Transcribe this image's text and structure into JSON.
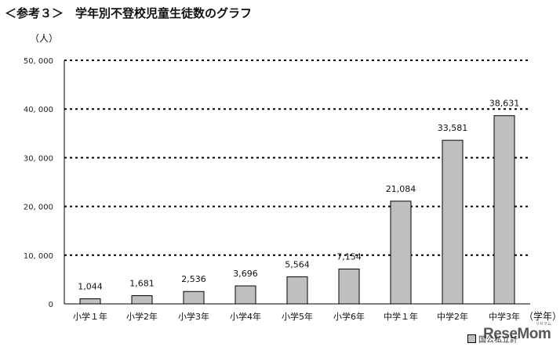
{
  "header": {
    "title": "＜参考３＞　学年別不登校児童生徒数のグラフ"
  },
  "chart_data": {
    "type": "bar",
    "ylabel": "（人）",
    "xlabel": "（学年）",
    "categories": [
      "小学１年",
      "小学2年",
      "小学3年",
      "小学4年",
      "小学5年",
      "小学6年",
      "中学１年",
      "中学2年",
      "中学3年"
    ],
    "values": [
      1044,
      1681,
      2536,
      3696,
      5564,
      7154,
      21084,
      33581,
      38631
    ],
    "value_labels": [
      "1,044",
      "1,681",
      "2,536",
      "3,696",
      "5,564",
      "7,154",
      "21,084",
      "33,581",
      "38,631"
    ],
    "ylim": [
      0,
      50000
    ],
    "yticks": [
      0,
      10000,
      20000,
      30000,
      40000,
      50000
    ],
    "ytick_labels": [
      "0",
      "10, 000",
      "20, 000",
      "30, 000",
      "40, 000",
      "50, 000"
    ],
    "grid": true,
    "grid_style": "dotted",
    "bar_color": "#bfbfbf",
    "bar_edge_color": "#000000",
    "legend": {
      "label": "国公私立計",
      "position": "bottom-right"
    }
  },
  "watermark": {
    "text": "ReseMom",
    "sub": "リセマム"
  }
}
